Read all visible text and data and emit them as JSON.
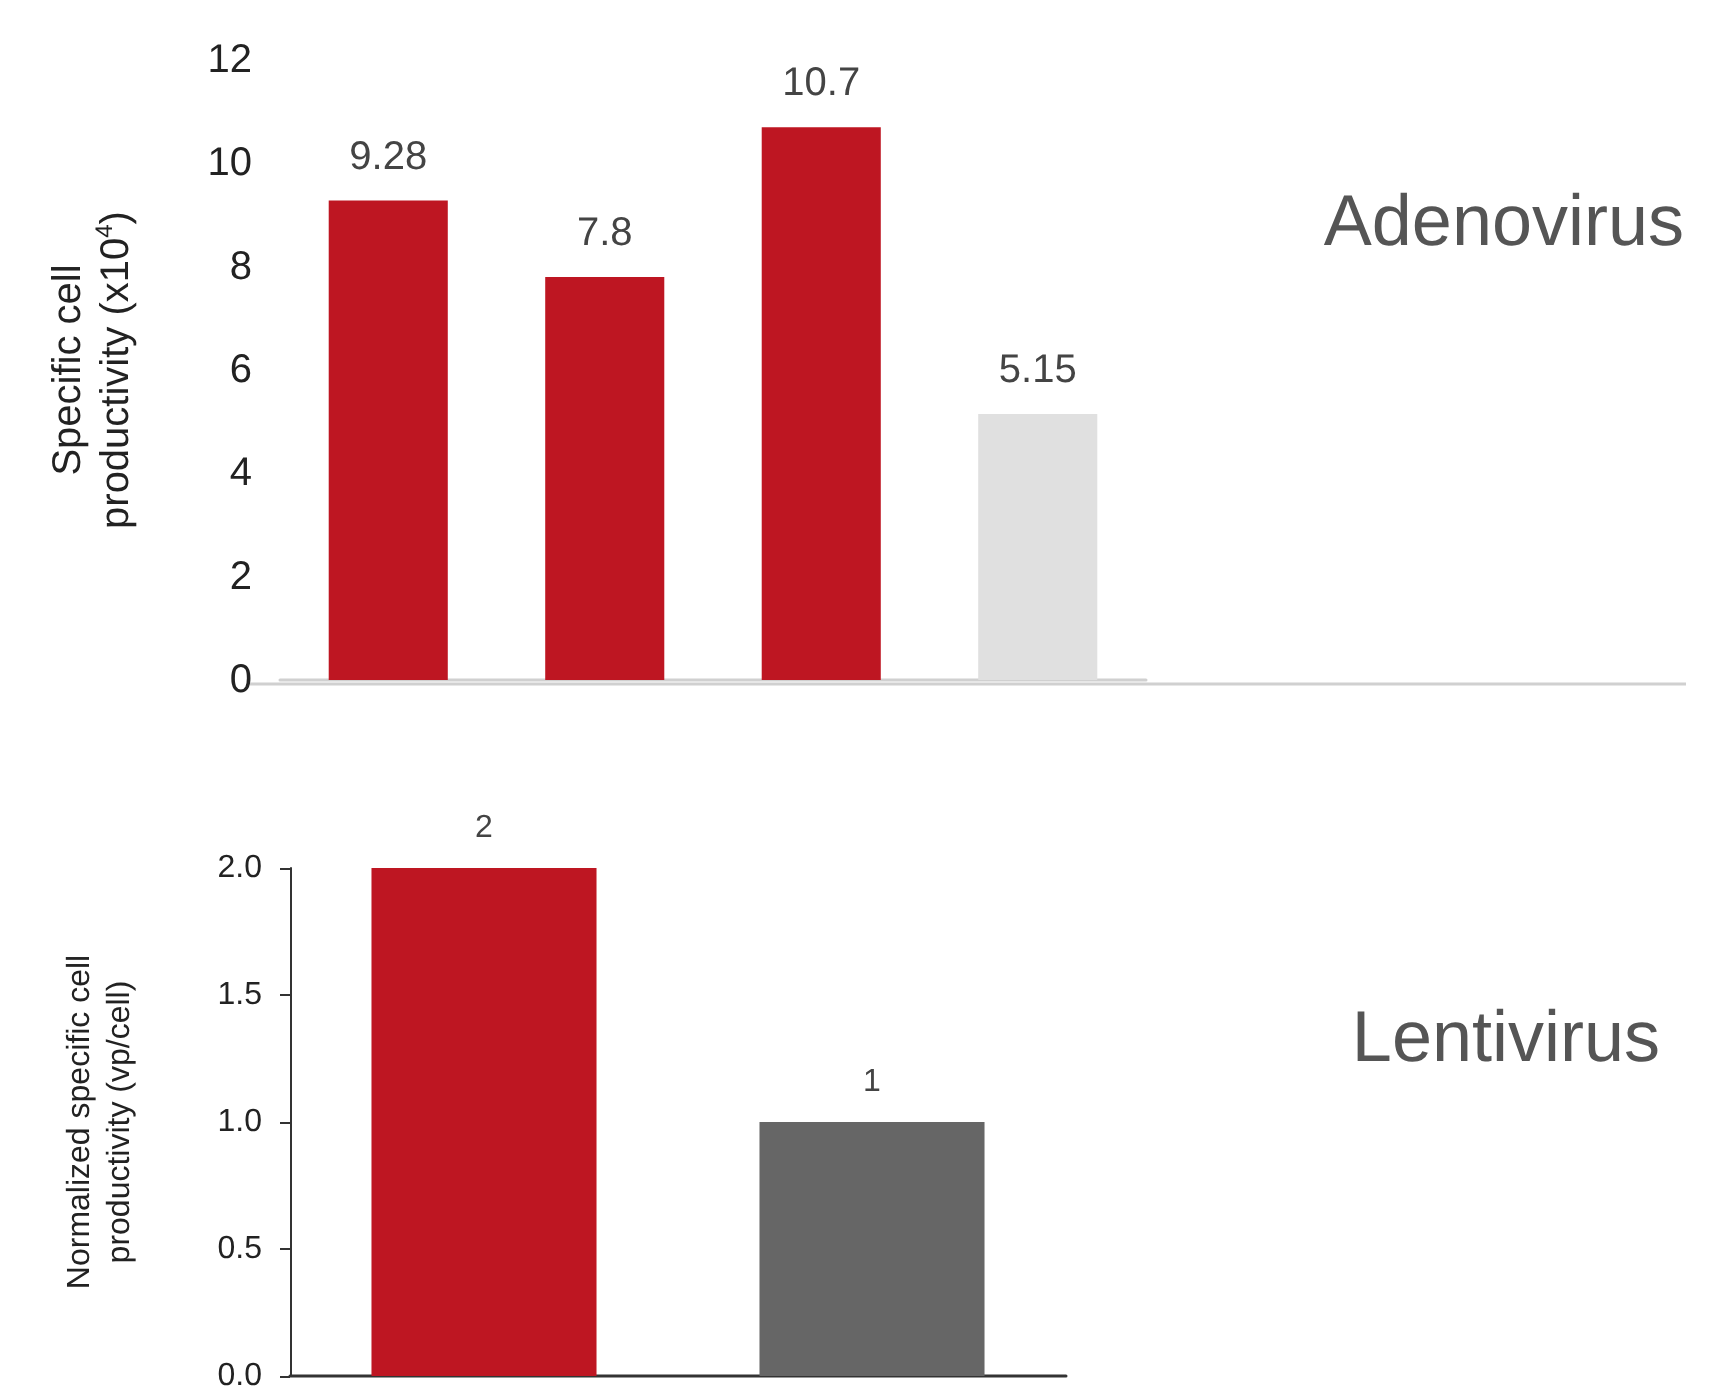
{
  "chart_data": [
    {
      "type": "bar",
      "categories": [
        null,
        null,
        null,
        null
      ],
      "values": [
        9.28,
        7.8,
        10.7,
        5.15
      ],
      "colors": [
        "#be1622",
        "#be1622",
        "#be1622",
        "#e0e0e0"
      ],
      "ylabel": "Specific cell productivity (x10$^{4}$)",
      "ylim": [
        0,
        12
      ],
      "yticks": [
        0,
        2,
        4,
        6,
        8,
        10,
        12
      ],
      "data_labels": true,
      "grid": false,
      "annotations": [
        "Adenovirus"
      ]
    },
    {
      "type": "bar",
      "categories": [
        null,
        null
      ],
      "values": [
        2,
        1
      ],
      "colors": [
        "#be1622",
        "#666666"
      ],
      "ylabel": "Normalized specific cell productivity (vp/cell)",
      "ylim": [
        0,
        2.0
      ],
      "yticks": [
        {
          "value": 0,
          "label": "0.0"
        },
        {
          "value": 0.5,
          "label": "0.5"
        },
        {
          "value": 1,
          "label": "1.0"
        },
        {
          "value": 1.5,
          "label": "1.5"
        },
        {
          "value": 2,
          "label": "2.0"
        }
      ],
      "data_labels": true,
      "grid": false,
      "annotations": [
        "Lentivirus"
      ]
    }
  ]
}
